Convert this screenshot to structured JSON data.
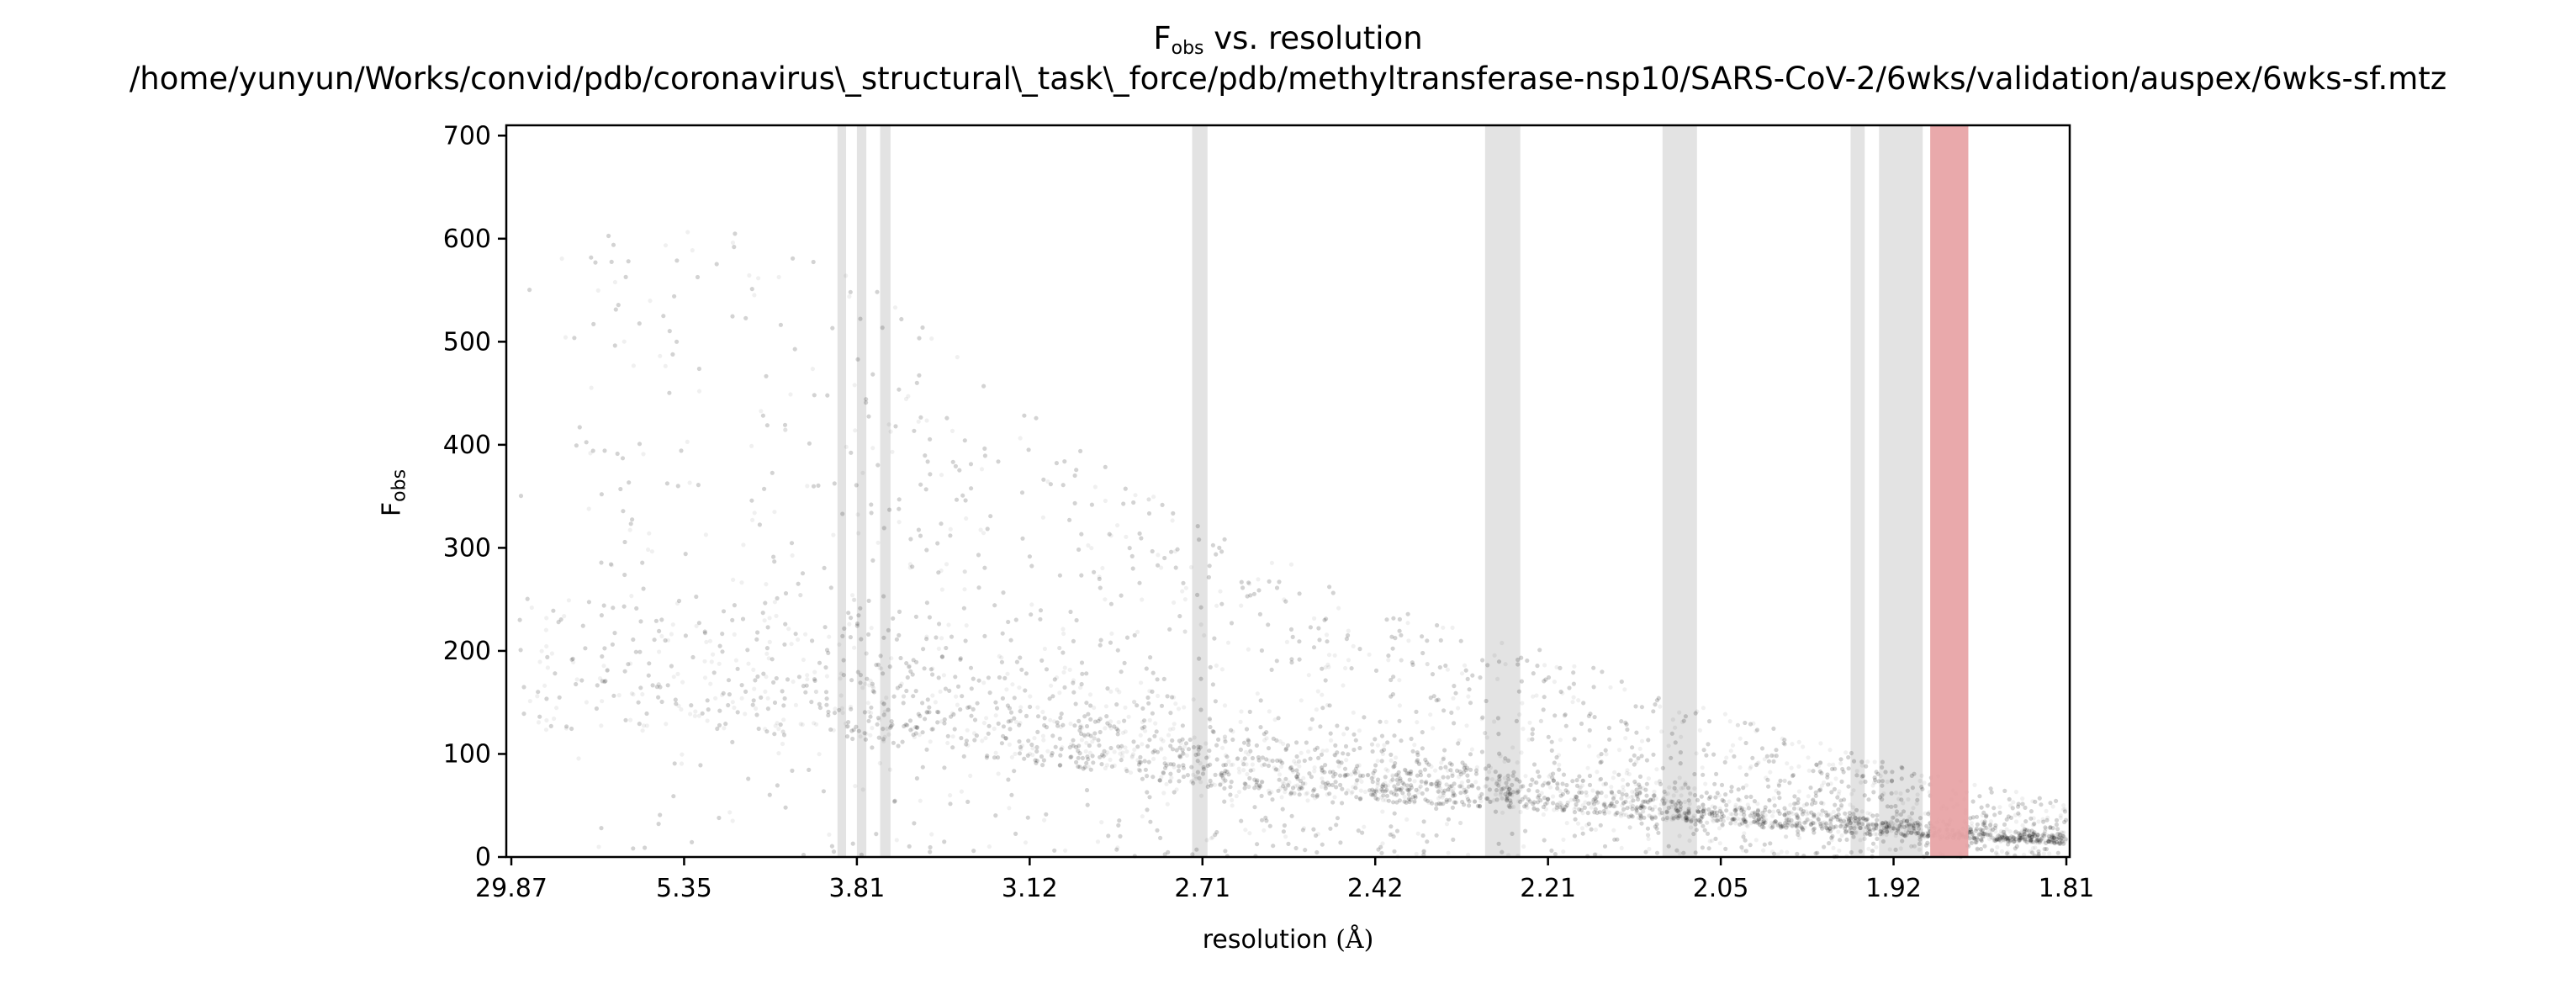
{
  "figure": {
    "title_main": "vs. resolution",
    "title_symbol": "F",
    "title_subscript": "obs",
    "subtitle": "/home/yunyun/Works/convid/pdb/coronavirus\\_structural\\_task\\_force/pdb/methyltransferase-nsp10/SARS-CoV-2/6wks/validation/auspex/6wks-sf.mtz"
  },
  "chart_data": {
    "type": "scatter",
    "title": "Fobs vs. resolution",
    "xlabel_text": "resolution",
    "xlabel_unit": "(Å)",
    "ylabel_symbol": "F",
    "ylabel_subscript": "obs",
    "x_scale": "1/d^2 (tick labels show resolution in Å)",
    "x_tick_labels": [
      "29.87",
      "5.35",
      "3.81",
      "3.12",
      "2.71",
      "2.42",
      "2.21",
      "2.05",
      "1.92",
      "1.81"
    ],
    "y_ticks": [
      0,
      100,
      200,
      300,
      400,
      500,
      600,
      700
    ],
    "ylim": [
      0,
      710
    ],
    "grid": false,
    "point_color": "#000000",
    "point_alpha": 0.06,
    "point_trend": [
      {
        "resolution": "29.87",
        "center": 260,
        "spread": 330
      },
      {
        "resolution": "5.35",
        "center": 280,
        "spread": 340
      },
      {
        "resolution": "3.81",
        "center": 250,
        "spread": 320
      },
      {
        "resolution": "3.12",
        "center": 200,
        "spread": 230
      },
      {
        "resolution": "2.71",
        "center": 150,
        "spread": 170
      },
      {
        "resolution": "2.42",
        "center": 120,
        "spread": 130
      },
      {
        "resolution": "2.21",
        "center": 100,
        "spread": 100
      },
      {
        "resolution": "2.05",
        "center": 70,
        "spread": 70
      },
      {
        "resolution": "1.92",
        "center": 45,
        "spread": 45
      },
      {
        "resolution": "1.81",
        "center": 28,
        "spread": 25
      }
    ],
    "ice_ring_color": "#e3e3e3",
    "ice_ring_bands_resolution": [
      [
        3.92,
        3.87
      ],
      [
        3.81,
        3.76
      ],
      [
        3.69,
        3.64
      ],
      [
        2.73,
        2.7
      ],
      [
        2.28,
        2.24
      ],
      [
        2.1,
        2.07
      ],
      [
        1.95,
        1.94
      ],
      [
        1.93,
        1.9
      ]
    ],
    "highlight_band_resolution": [
      1.895,
      1.87
    ],
    "highlight_color": "#e8a4a6"
  }
}
